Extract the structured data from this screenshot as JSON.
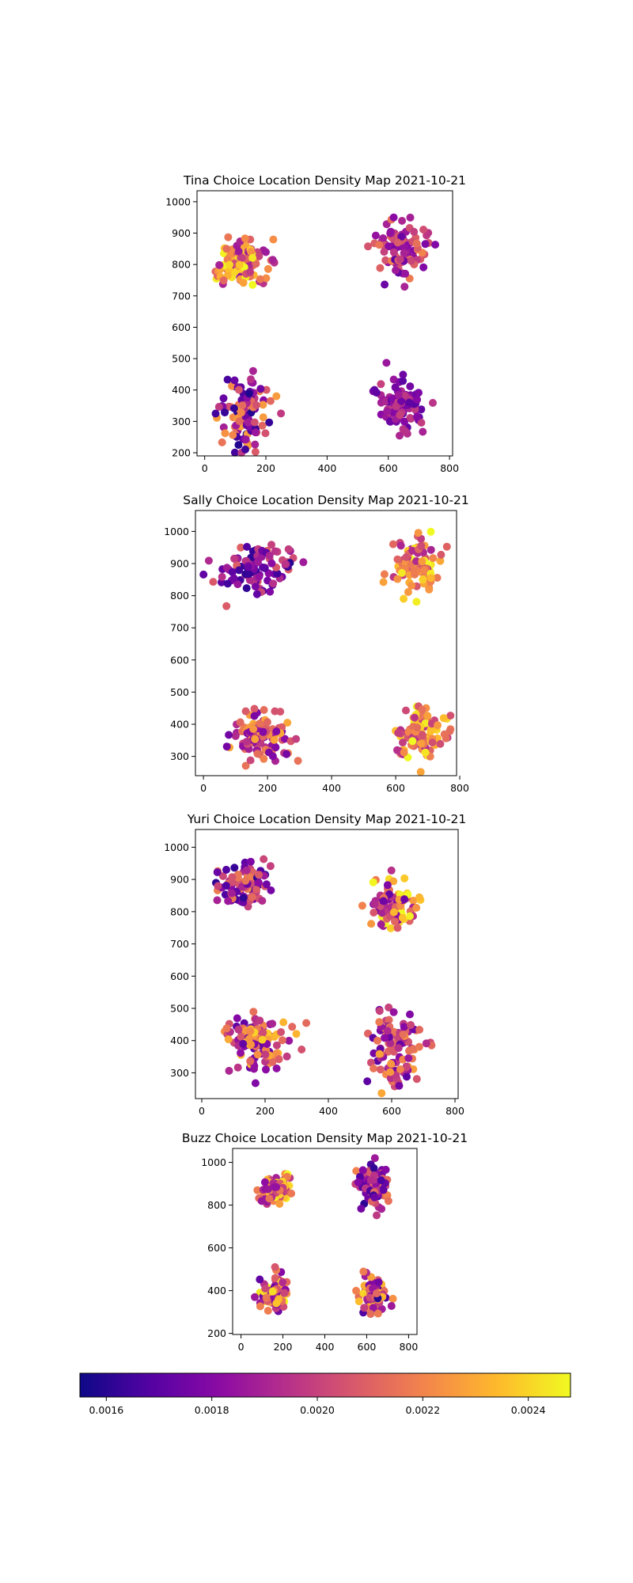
{
  "chart_data": [
    {
      "type": "scatter",
      "title": "Tina Choice Location Density Map 2021-10-21",
      "xlim": [
        -25,
        810
      ],
      "ylim": [
        190,
        1035
      ],
      "xticks": [
        0,
        200,
        400,
        600,
        800
      ],
      "yticks": [
        200,
        300,
        400,
        500,
        600,
        700,
        800,
        900,
        1000
      ],
      "grid": false,
      "clusters": [
        {
          "cx": 120,
          "cy": 810,
          "sx": 45,
          "sy": 35,
          "n": 120,
          "density": [
            0.00185,
            0.0025
          ],
          "seed": 11
        },
        {
          "cx": 640,
          "cy": 840,
          "sx": 40,
          "sy": 45,
          "n": 90,
          "density": [
            0.0017,
            0.0022
          ],
          "seed": 12
        },
        {
          "cx": 130,
          "cy": 320,
          "sx": 45,
          "sy": 60,
          "n": 110,
          "density": [
            0.00158,
            0.0023
          ],
          "seed": 13
        },
        {
          "cx": 640,
          "cy": 360,
          "sx": 40,
          "sy": 45,
          "n": 90,
          "density": [
            0.0017,
            0.002
          ],
          "seed": 14
        }
      ]
    },
    {
      "type": "scatter",
      "title": "Sally Choice Location Density Map 2021-10-21",
      "xlim": [
        -25,
        790
      ],
      "ylim": [
        240,
        1065
      ],
      "xticks": [
        0,
        200,
        400,
        600,
        800
      ],
      "yticks": [
        300,
        400,
        500,
        600,
        700,
        800,
        900,
        1000
      ],
      "grid": false,
      "clusters": [
        {
          "cx": 170,
          "cy": 880,
          "sx": 55,
          "sy": 40,
          "n": 100,
          "density": [
            0.0016,
            0.0021
          ],
          "seed": 21
        },
        {
          "cx": 660,
          "cy": 900,
          "sx": 35,
          "sy": 40,
          "n": 100,
          "density": [
            0.0019,
            0.0025
          ],
          "seed": 22
        },
        {
          "cx": 180,
          "cy": 360,
          "sx": 45,
          "sy": 35,
          "n": 110,
          "density": [
            0.00175,
            0.0023
          ],
          "seed": 23
        },
        {
          "cx": 680,
          "cy": 370,
          "sx": 40,
          "sy": 40,
          "n": 110,
          "density": [
            0.0019,
            0.0025
          ],
          "seed": 24
        }
      ]
    },
    {
      "type": "scatter",
      "title": "Yuri Choice Location Density Map 2021-10-21",
      "xlim": [
        -20,
        810
      ],
      "ylim": [
        220,
        1055
      ],
      "xticks": [
        0,
        200,
        400,
        600,
        800
      ],
      "yticks": [
        300,
        400,
        500,
        600,
        700,
        800,
        900,
        1000
      ],
      "grid": false,
      "clusters": [
        {
          "cx": 130,
          "cy": 880,
          "sx": 50,
          "sy": 35,
          "n": 90,
          "density": [
            0.0016,
            0.0022
          ],
          "seed": 31
        },
        {
          "cx": 600,
          "cy": 820,
          "sx": 35,
          "sy": 40,
          "n": 100,
          "density": [
            0.0017,
            0.0025
          ],
          "seed": 32
        },
        {
          "cx": 180,
          "cy": 400,
          "sx": 55,
          "sy": 45,
          "n": 110,
          "density": [
            0.0017,
            0.0024
          ],
          "seed": 33
        },
        {
          "cx": 610,
          "cy": 380,
          "sx": 45,
          "sy": 60,
          "n": 110,
          "density": [
            0.0017,
            0.0023
          ],
          "seed": 34
        }
      ]
    },
    {
      "type": "scatter",
      "title": "Buzz Choice Location Density Map 2021-10-21",
      "xlim": [
        -40,
        840
      ],
      "ylim": [
        195,
        1065
      ],
      "xticks": [
        0,
        200,
        400,
        600,
        800
      ],
      "yticks": [
        200,
        400,
        600,
        800,
        1000
      ],
      "grid": false,
      "clusters": [
        {
          "cx": 160,
          "cy": 880,
          "sx": 35,
          "sy": 40,
          "n": 80,
          "density": [
            0.0018,
            0.0025
          ],
          "seed": 41
        },
        {
          "cx": 640,
          "cy": 880,
          "sx": 35,
          "sy": 55,
          "n": 90,
          "density": [
            0.0016,
            0.0022
          ],
          "seed": 42
        },
        {
          "cx": 160,
          "cy": 390,
          "sx": 35,
          "sy": 45,
          "n": 90,
          "density": [
            0.0017,
            0.0025
          ],
          "seed": 43
        },
        {
          "cx": 640,
          "cy": 380,
          "sx": 30,
          "sy": 45,
          "n": 90,
          "density": [
            0.0016,
            0.0024
          ],
          "seed": 44
        }
      ]
    }
  ],
  "colorbar": {
    "cmap": "plasma",
    "range": [
      0.00155,
      0.00248
    ],
    "ticks": [
      "0.0016",
      "0.0018",
      "0.0020",
      "0.0022",
      "0.0024"
    ],
    "tick_values": [
      0.0016,
      0.0018,
      0.002,
      0.0022,
      0.0024
    ]
  }
}
